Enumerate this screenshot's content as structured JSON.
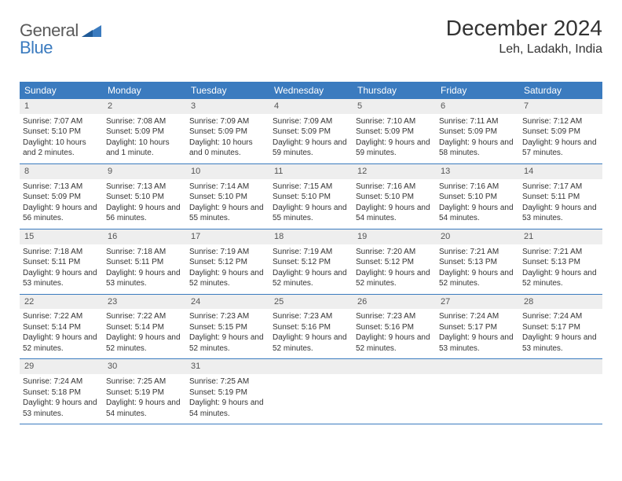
{
  "brand": {
    "part1": "General",
    "part2": "Blue"
  },
  "title": "December 2024",
  "location": "Leh, Ladakh, India",
  "colors": {
    "accent": "#3b7bbf",
    "headerRowBg": "#eeeeee",
    "text": "#333333",
    "logoGray": "#5a5a5a"
  },
  "weekdays": [
    "Sunday",
    "Monday",
    "Tuesday",
    "Wednesday",
    "Thursday",
    "Friday",
    "Saturday"
  ],
  "weeks": [
    [
      {
        "n": "1",
        "sr": "Sunrise: 7:07 AM",
        "ss": "Sunset: 5:10 PM",
        "dl": "Daylight: 10 hours and 2 minutes."
      },
      {
        "n": "2",
        "sr": "Sunrise: 7:08 AM",
        "ss": "Sunset: 5:09 PM",
        "dl": "Daylight: 10 hours and 1 minute."
      },
      {
        "n": "3",
        "sr": "Sunrise: 7:09 AM",
        "ss": "Sunset: 5:09 PM",
        "dl": "Daylight: 10 hours and 0 minutes."
      },
      {
        "n": "4",
        "sr": "Sunrise: 7:09 AM",
        "ss": "Sunset: 5:09 PM",
        "dl": "Daylight: 9 hours and 59 minutes."
      },
      {
        "n": "5",
        "sr": "Sunrise: 7:10 AM",
        "ss": "Sunset: 5:09 PM",
        "dl": "Daylight: 9 hours and 59 minutes."
      },
      {
        "n": "6",
        "sr": "Sunrise: 7:11 AM",
        "ss": "Sunset: 5:09 PM",
        "dl": "Daylight: 9 hours and 58 minutes."
      },
      {
        "n": "7",
        "sr": "Sunrise: 7:12 AM",
        "ss": "Sunset: 5:09 PM",
        "dl": "Daylight: 9 hours and 57 minutes."
      }
    ],
    [
      {
        "n": "8",
        "sr": "Sunrise: 7:13 AM",
        "ss": "Sunset: 5:09 PM",
        "dl": "Daylight: 9 hours and 56 minutes."
      },
      {
        "n": "9",
        "sr": "Sunrise: 7:13 AM",
        "ss": "Sunset: 5:10 PM",
        "dl": "Daylight: 9 hours and 56 minutes."
      },
      {
        "n": "10",
        "sr": "Sunrise: 7:14 AM",
        "ss": "Sunset: 5:10 PM",
        "dl": "Daylight: 9 hours and 55 minutes."
      },
      {
        "n": "11",
        "sr": "Sunrise: 7:15 AM",
        "ss": "Sunset: 5:10 PM",
        "dl": "Daylight: 9 hours and 55 minutes."
      },
      {
        "n": "12",
        "sr": "Sunrise: 7:16 AM",
        "ss": "Sunset: 5:10 PM",
        "dl": "Daylight: 9 hours and 54 minutes."
      },
      {
        "n": "13",
        "sr": "Sunrise: 7:16 AM",
        "ss": "Sunset: 5:10 PM",
        "dl": "Daylight: 9 hours and 54 minutes."
      },
      {
        "n": "14",
        "sr": "Sunrise: 7:17 AM",
        "ss": "Sunset: 5:11 PM",
        "dl": "Daylight: 9 hours and 53 minutes."
      }
    ],
    [
      {
        "n": "15",
        "sr": "Sunrise: 7:18 AM",
        "ss": "Sunset: 5:11 PM",
        "dl": "Daylight: 9 hours and 53 minutes."
      },
      {
        "n": "16",
        "sr": "Sunrise: 7:18 AM",
        "ss": "Sunset: 5:11 PM",
        "dl": "Daylight: 9 hours and 53 minutes."
      },
      {
        "n": "17",
        "sr": "Sunrise: 7:19 AM",
        "ss": "Sunset: 5:12 PM",
        "dl": "Daylight: 9 hours and 52 minutes."
      },
      {
        "n": "18",
        "sr": "Sunrise: 7:19 AM",
        "ss": "Sunset: 5:12 PM",
        "dl": "Daylight: 9 hours and 52 minutes."
      },
      {
        "n": "19",
        "sr": "Sunrise: 7:20 AM",
        "ss": "Sunset: 5:12 PM",
        "dl": "Daylight: 9 hours and 52 minutes."
      },
      {
        "n": "20",
        "sr": "Sunrise: 7:21 AM",
        "ss": "Sunset: 5:13 PM",
        "dl": "Daylight: 9 hours and 52 minutes."
      },
      {
        "n": "21",
        "sr": "Sunrise: 7:21 AM",
        "ss": "Sunset: 5:13 PM",
        "dl": "Daylight: 9 hours and 52 minutes."
      }
    ],
    [
      {
        "n": "22",
        "sr": "Sunrise: 7:22 AM",
        "ss": "Sunset: 5:14 PM",
        "dl": "Daylight: 9 hours and 52 minutes."
      },
      {
        "n": "23",
        "sr": "Sunrise: 7:22 AM",
        "ss": "Sunset: 5:14 PM",
        "dl": "Daylight: 9 hours and 52 minutes."
      },
      {
        "n": "24",
        "sr": "Sunrise: 7:23 AM",
        "ss": "Sunset: 5:15 PM",
        "dl": "Daylight: 9 hours and 52 minutes."
      },
      {
        "n": "25",
        "sr": "Sunrise: 7:23 AM",
        "ss": "Sunset: 5:16 PM",
        "dl": "Daylight: 9 hours and 52 minutes."
      },
      {
        "n": "26",
        "sr": "Sunrise: 7:23 AM",
        "ss": "Sunset: 5:16 PM",
        "dl": "Daylight: 9 hours and 52 minutes."
      },
      {
        "n": "27",
        "sr": "Sunrise: 7:24 AM",
        "ss": "Sunset: 5:17 PM",
        "dl": "Daylight: 9 hours and 53 minutes."
      },
      {
        "n": "28",
        "sr": "Sunrise: 7:24 AM",
        "ss": "Sunset: 5:17 PM",
        "dl": "Daylight: 9 hours and 53 minutes."
      }
    ],
    [
      {
        "n": "29",
        "sr": "Sunrise: 7:24 AM",
        "ss": "Sunset: 5:18 PM",
        "dl": "Daylight: 9 hours and 53 minutes."
      },
      {
        "n": "30",
        "sr": "Sunrise: 7:25 AM",
        "ss": "Sunset: 5:19 PM",
        "dl": "Daylight: 9 hours and 54 minutes."
      },
      {
        "n": "31",
        "sr": "Sunrise: 7:25 AM",
        "ss": "Sunset: 5:19 PM",
        "dl": "Daylight: 9 hours and 54 minutes."
      },
      null,
      null,
      null,
      null
    ]
  ]
}
